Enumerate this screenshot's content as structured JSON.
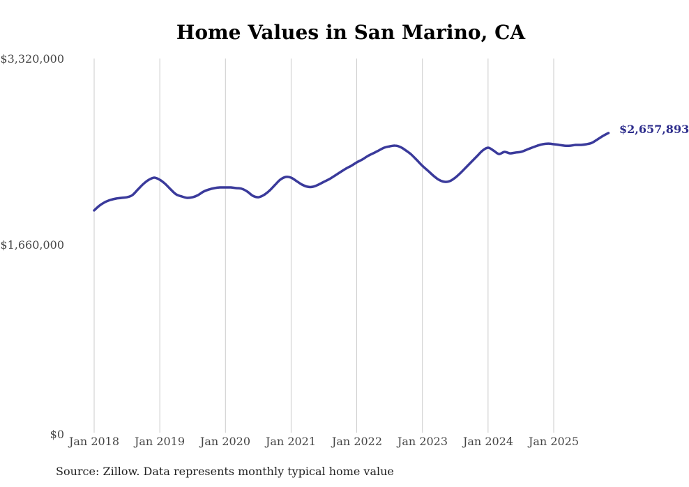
{
  "colors": {
    "line": "#3a3a9b",
    "annotation": "#2d2d8c",
    "gridline": "#cbcbcb",
    "axis_text": "#454545",
    "title_text": "#000000",
    "background": "#ffffff"
  },
  "source_note": "Source: Zillow. Data represents monthly typical home value",
  "chart_data": {
    "type": "line",
    "title": "Home Values in San Marino, CA",
    "x_start": "2018-01",
    "x_end": "2025-11",
    "x_unit": "month",
    "x_tick_labels": [
      "Jan 2018",
      "Jan 2019",
      "Jan 2020",
      "Jan 2021",
      "Jan 2022",
      "Jan 2023",
      "Jan 2024",
      "Jan 2025"
    ],
    "y_ticks": [
      "$0",
      "$1,660,000",
      "$3,320,000"
    ],
    "y_tick_values": [
      0,
      1660000,
      3320000
    ],
    "ylim": [
      0,
      3320000
    ],
    "grid": "vertical-only",
    "legend": "none",
    "end_value": 2657893,
    "end_value_label": "$2,657,893",
    "series": [
      {
        "name": "Monthly typical home value",
        "values": [
          1970000,
          2013000,
          2044000,
          2063000,
          2075000,
          2081000,
          2087000,
          2106000,
          2156000,
          2205000,
          2242000,
          2261000,
          2242000,
          2205000,
          2156000,
          2112000,
          2094000,
          2081000,
          2087000,
          2106000,
          2137000,
          2156000,
          2168000,
          2174000,
          2174000,
          2174000,
          2168000,
          2162000,
          2137000,
          2100000,
          2087000,
          2106000,
          2143000,
          2193000,
          2242000,
          2267000,
          2261000,
          2230000,
          2199000,
          2180000,
          2180000,
          2199000,
          2224000,
          2248000,
          2279000,
          2310000,
          2341000,
          2366000,
          2397000,
          2422000,
          2453000,
          2477000,
          2502000,
          2527000,
          2539000,
          2546000,
          2533000,
          2502000,
          2465000,
          2416000,
          2366000,
          2323000,
          2279000,
          2242000,
          2224000,
          2230000,
          2261000,
          2304000,
          2354000,
          2403000,
          2453000,
          2502000,
          2527000,
          2502000,
          2471000,
          2490000,
          2477000,
          2484000,
          2490000,
          2508000,
          2527000,
          2545000,
          2558000,
          2564000,
          2558000,
          2552000,
          2545000,
          2545000,
          2552000,
          2552000,
          2558000,
          2571000,
          2601000,
          2632000,
          2657893
        ]
      }
    ]
  }
}
